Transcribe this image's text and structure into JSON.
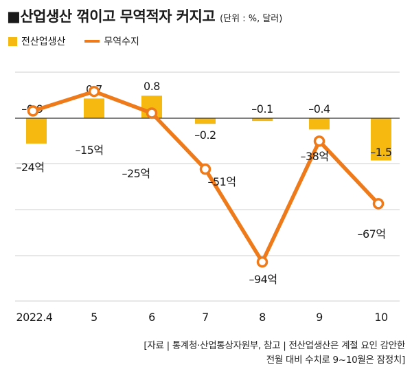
{
  "header": {
    "title": "산업생산 꺾이고 무역적자 커지고",
    "unit": "(단위 : %, 달러)"
  },
  "source_note": {
    "line1": "[자료 | 통계청·산업통상자원부, 참고 | 전산업생산은 계절 요인 감안한",
    "line2": "전월 대비 수치로 9~10월은 잠정치]"
  },
  "colors": {
    "bar": "#F6B90F",
    "line": "#EE7A1A",
    "grid": "#cfcfcf",
    "text": "#1a1a1a"
  },
  "chart_data": {
    "type": "bar+line",
    "categories": [
      "2022.4",
      "5",
      "6",
      "7",
      "8",
      "9",
      "10"
    ],
    "series": [
      {
        "name": "전산업생산",
        "kind": "bar",
        "values": [
          -0.9,
          0.7,
          0.8,
          -0.2,
          -0.1,
          -0.4,
          -1.5
        ],
        "labels": [
          "–0.9",
          "0.7",
          "0.8",
          "–0.2",
          "–0.1",
          "–0.4",
          "–1.5"
        ]
      },
      {
        "name": "무역수지",
        "kind": "line",
        "values": [
          -24,
          -15,
          -25,
          -51,
          -94,
          -38,
          -67
        ],
        "labels": [
          "–24억",
          "–15억",
          "–25억",
          "–51억",
          "–94억",
          "–38억",
          "–67억"
        ]
      }
    ],
    "grid": true,
    "legend_position": "top-left"
  }
}
